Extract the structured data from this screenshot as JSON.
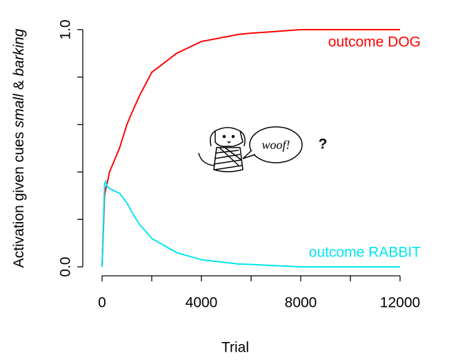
{
  "chart_data": {
    "type": "line",
    "xlabel": "Trial",
    "ylabel": [
      "Activation given cues",
      "small",
      "&",
      "barking"
    ],
    "x": [
      0,
      100,
      150,
      200,
      300,
      500,
      700,
      1000,
      1200,
      1500,
      2000,
      3000,
      4000,
      5500,
      6000,
      8000,
      12000
    ],
    "series": [
      {
        "name": "outcome DOG",
        "color": "#ff0000",
        "values": [
          0,
          0.3,
          0.33,
          0.35,
          0.4,
          0.45,
          0.5,
          0.6,
          0.65,
          0.72,
          0.82,
          0.9,
          0.95,
          0.98,
          0.985,
          1.0,
          1.0
        ]
      },
      {
        "name": "outcome RABBIT",
        "color": "#00e5ee",
        "values": [
          0,
          0.35,
          0.36,
          0.34,
          0.33,
          0.32,
          0.31,
          0.27,
          0.23,
          0.18,
          0.12,
          0.06,
          0.03,
          0.012,
          0.01,
          0.0,
          0.0
        ]
      }
    ],
    "xlim": [
      0,
      12000
    ],
    "ylim": [
      0,
      1
    ],
    "xticks": [
      {
        "value": 0,
        "label": "0"
      },
      {
        "value": 2000,
        "label": null
      },
      {
        "value": 4000,
        "label": "4000"
      },
      {
        "value": 6000,
        "label": null
      },
      {
        "value": 8000,
        "label": "8000"
      },
      {
        "value": 10000,
        "label": null
      },
      {
        "value": 12000,
        "label": "12000"
      }
    ],
    "yticks": [
      {
        "value": 0,
        "label": "0.0"
      },
      {
        "value": 0.2,
        "label": null
      },
      {
        "value": 0.4,
        "label": null
      },
      {
        "value": 0.6,
        "label": null
      },
      {
        "value": 0.8,
        "label": null
      },
      {
        "value": 1,
        "label": "1.0"
      }
    ],
    "annotations": [
      "woof!",
      "?"
    ]
  }
}
